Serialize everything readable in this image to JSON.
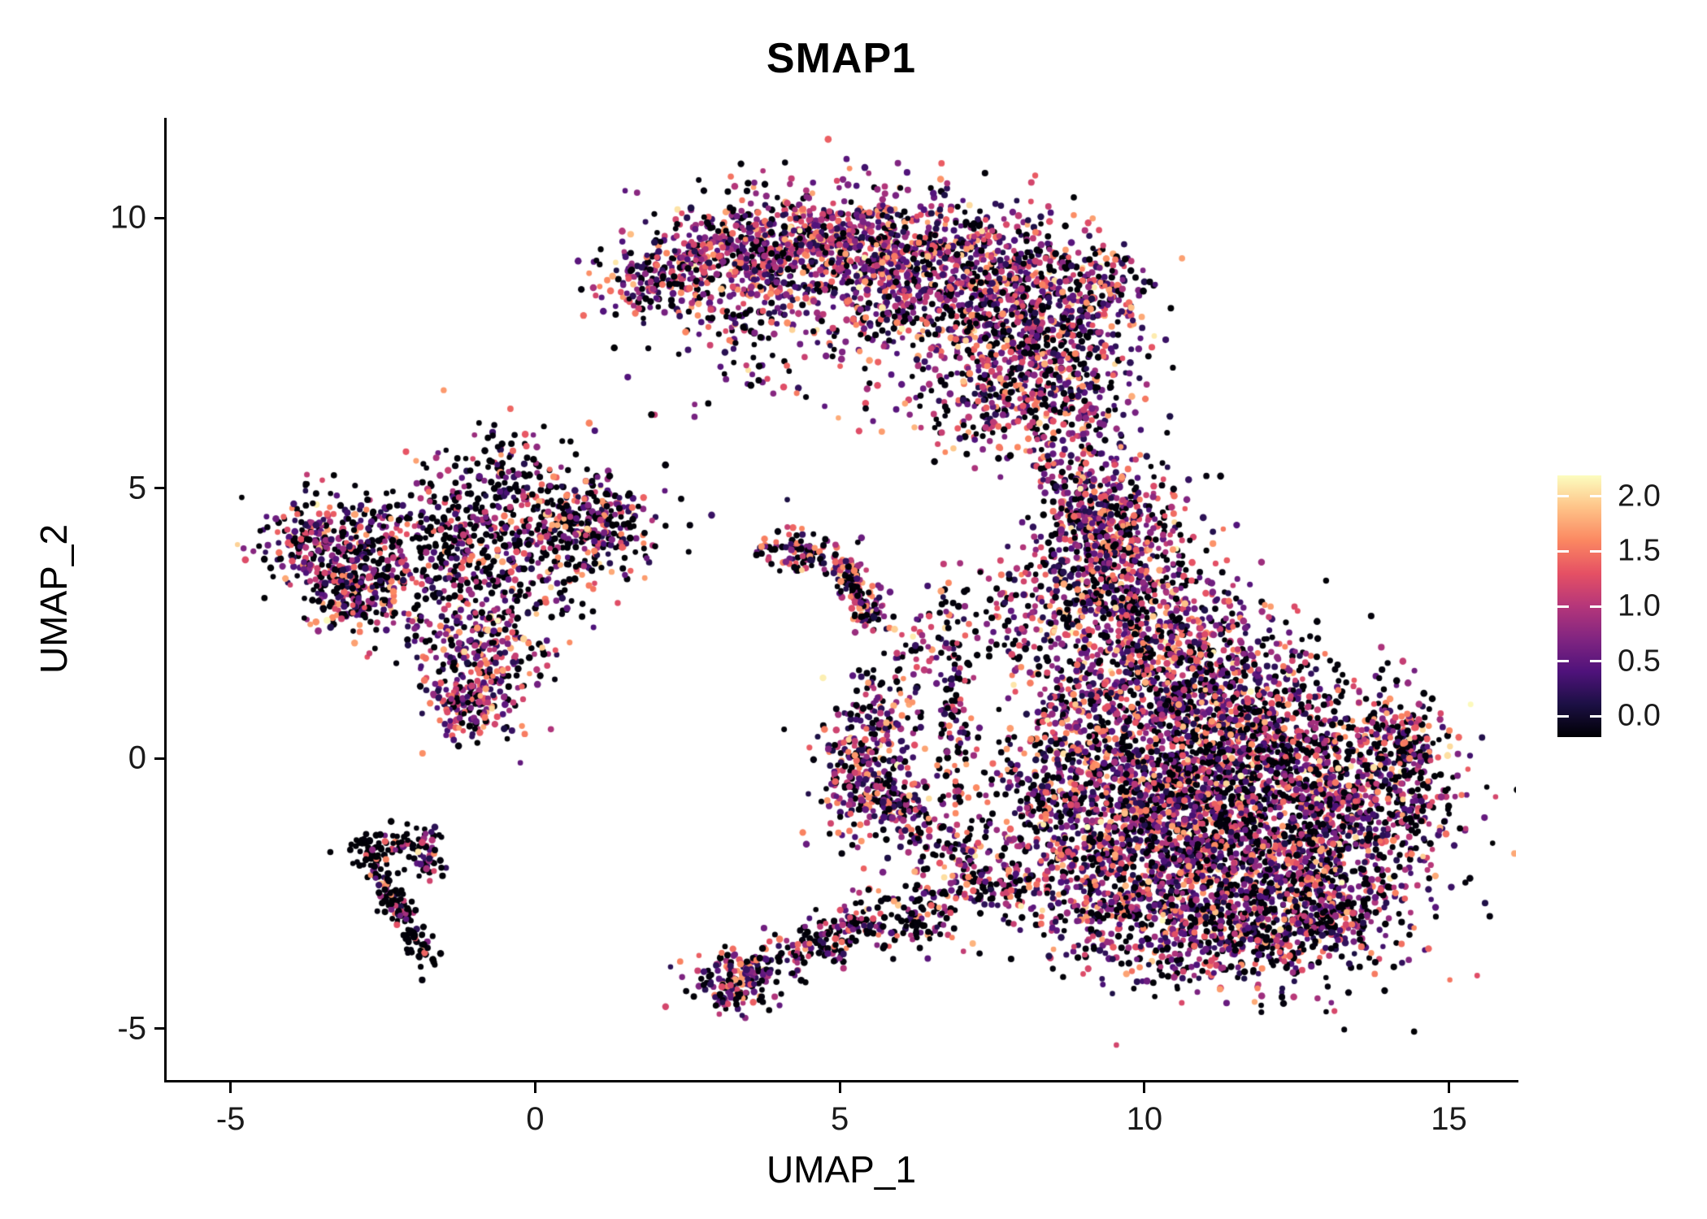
{
  "title": "SMAP1",
  "axes": {
    "x_label": "UMAP_1",
    "y_label": "UMAP_2"
  },
  "chart_data": {
    "type": "scatter",
    "title": "SMAP1",
    "xlabel": "UMAP_1",
    "ylabel": "UMAP_2",
    "xlim": [
      -6.05,
      16.1
    ],
    "ylim": [
      -5.95,
      11.85
    ],
    "x_ticks": [
      -5,
      0,
      5,
      10,
      15
    ],
    "y_ticks": [
      -5,
      0,
      5,
      10
    ],
    "grid": false,
    "legend_position": "right",
    "colorbar": {
      "tick_labels": [
        "2.0",
        "1.5",
        "1.0",
        "0.5",
        "0.0"
      ],
      "tick_values": [
        2.0,
        1.5,
        1.0,
        0.5,
        0.0
      ],
      "value_range": [
        0,
        2.05
      ],
      "palette_name": "magma",
      "palette_stops": [
        "#000004",
        "#1c1044",
        "#4f127b",
        "#812581",
        "#b5367a",
        "#e55064",
        "#fb8761",
        "#fec287",
        "#fcfdbf"
      ]
    },
    "point_style": {
      "radius_px": 3.8,
      "shape": "circle"
    },
    "seed": 20240601,
    "clusters": [
      {
        "x": 1.9,
        "y": 8.8,
        "sx": 0.45,
        "sy": 0.3,
        "n": 140,
        "black_frac": 0.3
      },
      {
        "x": 3.0,
        "y": 9.3,
        "sx": 0.7,
        "sy": 0.5,
        "n": 350,
        "black_frac": 0.28
      },
      {
        "x": 4.5,
        "y": 9.6,
        "sx": 0.8,
        "sy": 0.5,
        "n": 420,
        "black_frac": 0.25
      },
      {
        "x": 6.0,
        "y": 9.2,
        "sx": 0.9,
        "sy": 0.6,
        "n": 500,
        "black_frac": 0.25
      },
      {
        "x": 7.4,
        "y": 8.7,
        "sx": 0.9,
        "sy": 0.75,
        "n": 550,
        "black_frac": 0.27
      },
      {
        "x": 8.5,
        "y": 7.8,
        "sx": 0.7,
        "sy": 0.9,
        "n": 450,
        "black_frac": 0.27
      },
      {
        "x": 7.8,
        "y": 6.7,
        "sx": 0.8,
        "sy": 0.6,
        "n": 300,
        "black_frac": 0.3
      },
      {
        "x": 9.4,
        "y": 8.8,
        "sx": 0.3,
        "sy": 0.35,
        "n": 90,
        "black_frac": 0.3
      },
      {
        "x": 5.1,
        "y": 8.1,
        "sx": 1.3,
        "sy": 0.7,
        "n": 160,
        "black_frac": 0.3
      },
      {
        "x": 3.6,
        "y": 8.0,
        "sx": 0.6,
        "sy": 0.6,
        "n": 70,
        "black_frac": 0.35
      },
      {
        "x": 8.9,
        "y": 5.6,
        "sx": 0.4,
        "sy": 0.7,
        "n": 110,
        "black_frac": 0.3
      },
      {
        "x": 9.1,
        "y": 4.6,
        "sx": 0.35,
        "sy": 0.5,
        "n": 90,
        "black_frac": 0.3
      },
      {
        "x": 2.3,
        "y": 6.8,
        "sx": 1.1,
        "sy": 0.7,
        "n": 12,
        "black_frac": 0.5
      },
      {
        "x": -3.4,
        "y": 3.9,
        "sx": 0.55,
        "sy": 0.5,
        "n": 320,
        "black_frac": 0.35
      },
      {
        "x": -2.8,
        "y": 3.0,
        "sx": 0.45,
        "sy": 0.4,
        "n": 180,
        "black_frac": 0.4
      },
      {
        "x": -0.7,
        "y": 3.9,
        "sx": 0.95,
        "sy": 0.85,
        "n": 550,
        "black_frac": 0.5
      },
      {
        "x": 0.9,
        "y": 4.4,
        "sx": 0.55,
        "sy": 0.45,
        "n": 260,
        "black_frac": 0.45
      },
      {
        "x": -0.9,
        "y": 1.9,
        "sx": 0.5,
        "sy": 0.65,
        "n": 280,
        "black_frac": 0.25
      },
      {
        "x": -1.1,
        "y": 0.95,
        "sx": 0.3,
        "sy": 0.3,
        "n": 110,
        "black_frac": 0.3
      },
      {
        "x": -0.3,
        "y": 5.4,
        "sx": 0.35,
        "sy": 0.45,
        "n": 60,
        "black_frac": 0.5
      },
      {
        "x": -1.8,
        "y": 4.3,
        "sx": 0.6,
        "sy": 0.5,
        "n": 80,
        "black_frac": 0.5
      },
      {
        "x": -2.85,
        "y": -1.5,
        "x2": -1.75,
        "y2": -3.75,
        "sx": 0.12,
        "sy": 0.12,
        "n": 170,
        "black_frac": 0.8
      },
      {
        "x": -2.2,
        "y": -1.6,
        "sx": 0.3,
        "sy": 0.15,
        "n": 50,
        "black_frac": 0.7
      },
      {
        "x": -1.75,
        "y": -1.8,
        "sx": 0.15,
        "sy": 0.25,
        "n": 40,
        "black_frac": 0.5
      },
      {
        "x": 4.25,
        "y": 3.85,
        "sx": 0.35,
        "sy": 0.22,
        "n": 90,
        "black_frac": 0.45
      },
      {
        "x": 5.0,
        "y": 3.6,
        "x2": 5.55,
        "y2": 2.55,
        "sx": 0.15,
        "sy": 0.15,
        "n": 160,
        "black_frac": 0.3
      },
      {
        "x": 9.6,
        "y": 4.4,
        "sx": 0.6,
        "sy": 0.6,
        "n": 280,
        "black_frac": 0.3
      },
      {
        "x": 9.3,
        "y": 3.3,
        "sx": 0.7,
        "sy": 0.6,
        "n": 350,
        "black_frac": 0.3
      },
      {
        "x": 10.2,
        "y": 2.2,
        "sx": 0.9,
        "sy": 0.8,
        "n": 550,
        "black_frac": 0.3
      },
      {
        "x": 11.0,
        "y": 1.0,
        "sx": 1.1,
        "sy": 0.8,
        "n": 650,
        "black_frac": 0.32
      },
      {
        "x": 11.6,
        "y": -0.4,
        "sx": 1.5,
        "sy": 0.95,
        "n": 1250,
        "black_frac": 0.34
      },
      {
        "x": 11.8,
        "y": -2.1,
        "sx": 1.4,
        "sy": 0.95,
        "n": 1200,
        "black_frac": 0.34
      },
      {
        "x": 10.1,
        "y": -1.1,
        "sx": 0.8,
        "sy": 0.9,
        "n": 500,
        "black_frac": 0.33
      },
      {
        "x": 13.6,
        "y": -0.5,
        "sx": 0.65,
        "sy": 0.85,
        "n": 350,
        "black_frac": 0.35
      },
      {
        "x": 14.3,
        "y": 0.3,
        "sx": 0.3,
        "sy": 0.45,
        "n": 110,
        "black_frac": 0.4
      },
      {
        "x": 11.2,
        "y": -3.3,
        "sx": 1.0,
        "sy": 0.5,
        "n": 380,
        "black_frac": 0.35
      },
      {
        "x": 8.8,
        "y": 0.3,
        "sx": 0.55,
        "sy": 0.9,
        "n": 260,
        "black_frac": 0.33
      },
      {
        "x": 9.2,
        "y": -2.3,
        "sx": 0.7,
        "sy": 0.7,
        "n": 240,
        "black_frac": 0.4
      },
      {
        "x": 12.9,
        "y": -2.8,
        "sx": 0.6,
        "sy": 0.5,
        "n": 200,
        "black_frac": 0.4
      },
      {
        "x": 5.35,
        "y": -0.2,
        "sx": 0.35,
        "sy": 0.55,
        "n": 220,
        "black_frac": 0.25
      },
      {
        "x": 5.95,
        "y": -0.9,
        "sx": 0.3,
        "sy": 0.35,
        "n": 120,
        "black_frac": 0.3
      },
      {
        "x": 6.3,
        "y": -1.3,
        "x2": 7.8,
        "y2": -2.6,
        "sx": 0.3,
        "sy": 0.3,
        "n": 160,
        "black_frac": 0.4
      },
      {
        "x": 3.25,
        "y": -4.15,
        "sx": 0.35,
        "sy": 0.3,
        "n": 160,
        "black_frac": 0.35
      },
      {
        "x": 3.6,
        "y": -3.9,
        "x2": 5.6,
        "y2": -3.0,
        "sx": 0.22,
        "sy": 0.22,
        "n": 130,
        "black_frac": 0.4
      },
      {
        "x": 4.6,
        "y": -3.3,
        "x2": 7.0,
        "y2": -2.7,
        "sx": 0.25,
        "sy": 0.25,
        "n": 90,
        "black_frac": 0.45
      },
      {
        "x": 6.9,
        "y": 0.6,
        "sx": 0.18,
        "sy": 1.1,
        "n": 110,
        "black_frac": 0.4
      },
      {
        "x": 6.6,
        "y": 2.2,
        "sx": 0.4,
        "sy": 0.5,
        "n": 60,
        "black_frac": 0.4
      },
      {
        "x": 7.8,
        "y": 2.6,
        "sx": 0.6,
        "sy": 0.7,
        "n": 90,
        "black_frac": 0.35
      },
      {
        "x": 6.2,
        "y": -2.9,
        "sx": 0.5,
        "sy": 0.4,
        "n": 80,
        "black_frac": 0.45
      },
      {
        "x": 8.3,
        "y": -1.3,
        "sx": 0.6,
        "sy": 0.8,
        "n": 200,
        "black_frac": 0.35
      },
      {
        "x": 5.7,
        "y": 0.9,
        "sx": 0.3,
        "sy": 0.4,
        "n": 70,
        "black_frac": 0.3
      },
      {
        "x": 5.8,
        "y": 1.6,
        "sx": 0.4,
        "sy": 0.4,
        "n": 20,
        "black_frac": 0.4
      }
    ]
  }
}
